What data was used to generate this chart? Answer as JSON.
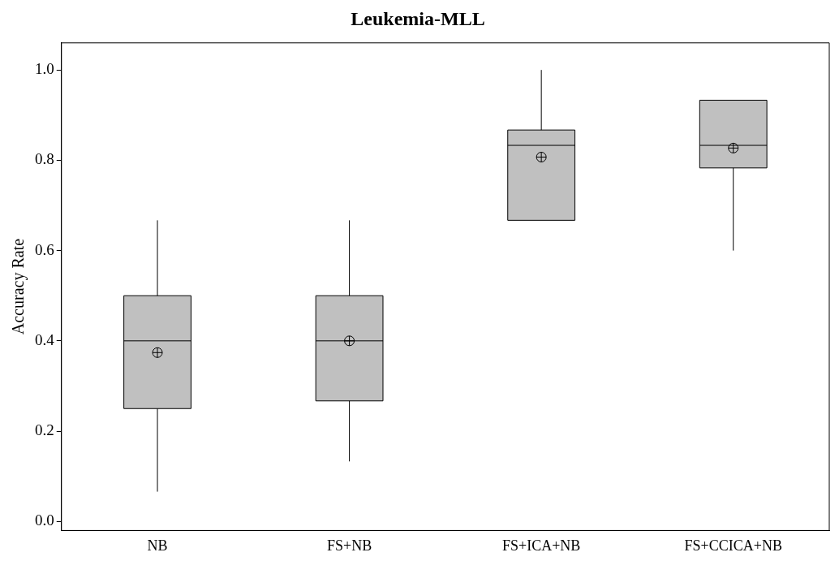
{
  "chart_data": {
    "type": "box",
    "title": "Leukemia-MLL",
    "ylabel": "Accuracy Rate",
    "categories": [
      "NB",
      "FS+NB",
      "FS+ICA+NB",
      "FS+CCICA+NB"
    ],
    "color": "#c0c0c0",
    "boxes": [
      {
        "low": 0.066,
        "q1": 0.25,
        "median": 0.4,
        "q3": 0.5,
        "high": 0.667,
        "mean": 0.374
      },
      {
        "low": 0.133,
        "q1": 0.267,
        "median": 0.4,
        "q3": 0.5,
        "high": 0.667,
        "mean": 0.4
      },
      {
        "low": 0.667,
        "q1": 0.667,
        "median": 0.833,
        "q3": 0.867,
        "high": 1.0,
        "mean": 0.807
      },
      {
        "low": 0.6,
        "q1": 0.783,
        "median": 0.833,
        "q3": 0.933,
        "high": 0.933,
        "mean": 0.827
      }
    ],
    "ylim": [
      -0.02,
      1.06
    ],
    "yticks": [
      {
        "value": 0,
        "label": "0.0"
      },
      {
        "value": 0.2,
        "label": "0.2"
      },
      {
        "value": 0.4,
        "label": "0.4"
      },
      {
        "value": 0.6,
        "label": "0.6"
      },
      {
        "value": 0.8,
        "label": "0.8"
      },
      {
        "value": 1,
        "label": "1.0"
      }
    ],
    "grid": false,
    "legend": false
  }
}
